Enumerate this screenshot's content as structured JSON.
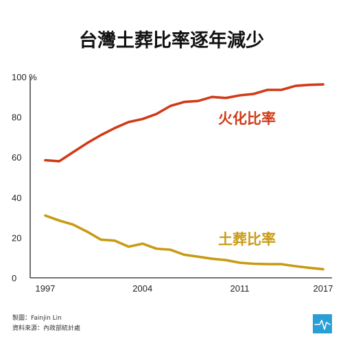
{
  "chart_data": {
    "type": "line",
    "title": "台灣土葬比率逐年減少",
    "x": [
      1997,
      1998,
      1999,
      2000,
      2001,
      2002,
      2003,
      2004,
      2005,
      2006,
      2007,
      2008,
      2009,
      2010,
      2011,
      2012,
      2013,
      2014,
      2015,
      2016,
      2017
    ],
    "xticks": [
      1997,
      2004,
      2011,
      2017
    ],
    "ylim": [
      0,
      100
    ],
    "yticks": [
      "0",
      "20",
      "40",
      "60",
      "80",
      "100 %"
    ],
    "yticks_values": [
      0,
      20,
      40,
      60,
      80,
      100
    ],
    "grid": false,
    "series": [
      {
        "name": "火化比率",
        "color": "#d13a16",
        "values": [
          58.5,
          58.0,
          62.5,
          67.0,
          71.0,
          74.5,
          77.5,
          79.0,
          81.5,
          85.5,
          87.5,
          88.0,
          90.0,
          89.5,
          90.8,
          91.5,
          93.5,
          93.5,
          95.5,
          96.0,
          96.2
        ]
      },
      {
        "name": "土葬比率",
        "color": "#c99b12",
        "values": [
          31.0,
          28.5,
          26.5,
          23.0,
          19.0,
          18.5,
          15.5,
          17.0,
          14.5,
          14.0,
          11.5,
          10.5,
          9.5,
          8.8,
          7.5,
          7.0,
          6.8,
          6.8,
          5.8,
          5.0,
          4.3
        ]
      }
    ]
  },
  "credits": {
    "line1": "製圖：Fainjin Lin",
    "line2": "資料來源：內政部統計處"
  }
}
